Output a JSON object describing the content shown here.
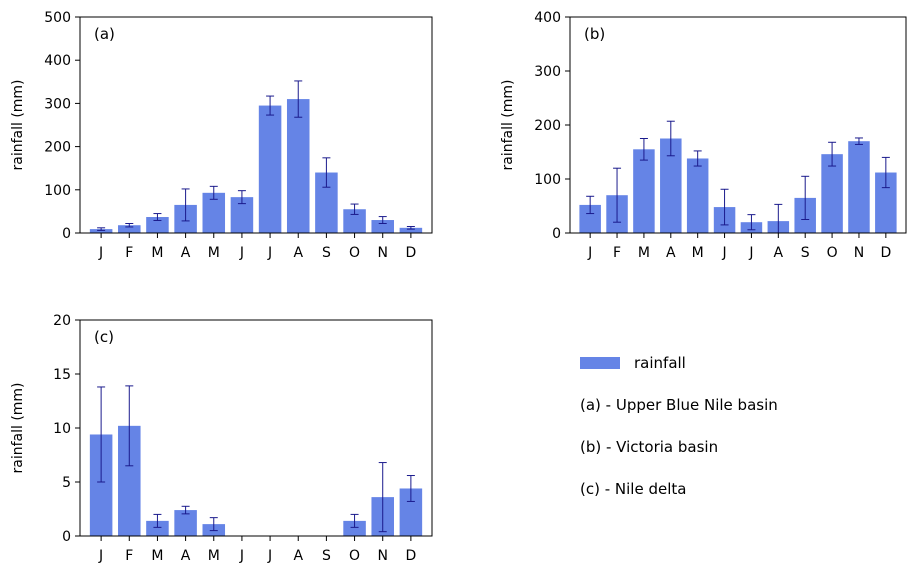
{
  "colors": {
    "bar": "#6584e6",
    "error": "#1a1a8c",
    "axis": "#000000"
  },
  "legend": {
    "series_label": "rainfall",
    "notes": [
      "(a) - Upper Blue Nile basin",
      "(b) - Victoria basin",
      "(c) - Nile delta"
    ]
  },
  "chart_data": [
    {
      "type": "bar",
      "panel": "(a)",
      "categories": [
        "J",
        "F",
        "M",
        "A",
        "M",
        "J",
        "J",
        "A",
        "S",
        "O",
        "N",
        "D"
      ],
      "values": [
        9,
        18,
        37,
        65,
        93,
        83,
        295,
        310,
        140,
        55,
        30,
        12
      ],
      "errors": [
        3,
        4,
        8,
        37,
        15,
        15,
        22,
        42,
        34,
        12,
        8,
        3
      ],
      "ylabel": "rainfall (mm)",
      "ylim": [
        0,
        500
      ],
      "yticks": [
        0,
        100,
        200,
        300,
        400,
        500
      ]
    },
    {
      "type": "bar",
      "panel": "(b)",
      "categories": [
        "J",
        "F",
        "M",
        "A",
        "M",
        "J",
        "J",
        "A",
        "S",
        "O",
        "N",
        "D"
      ],
      "values": [
        52,
        70,
        155,
        175,
        138,
        48,
        20,
        22,
        65,
        146,
        170,
        112
      ],
      "errors": [
        16,
        50,
        20,
        32,
        14,
        33,
        14,
        31,
        40,
        22,
        6,
        28
      ],
      "ylabel": "rainfall (mm)",
      "ylim": [
        0,
        400
      ],
      "yticks": [
        0,
        100,
        200,
        300,
        400
      ]
    },
    {
      "type": "bar",
      "panel": "(c)",
      "categories": [
        "J",
        "F",
        "M",
        "A",
        "M",
        "J",
        "J",
        "A",
        "S",
        "O",
        "N",
        "D"
      ],
      "values": [
        9.4,
        10.2,
        1.4,
        2.4,
        1.1,
        0,
        0,
        0,
        0,
        1.4,
        3.6,
        4.4
      ],
      "errors": [
        4.4,
        3.7,
        0.6,
        0.35,
        0.6,
        0,
        0,
        0,
        0,
        0.6,
        3.2,
        1.2
      ],
      "ylabel": "rainfall (mm)",
      "ylim": [
        0,
        20
      ],
      "yticks": [
        0,
        5,
        10,
        15,
        20
      ]
    }
  ]
}
